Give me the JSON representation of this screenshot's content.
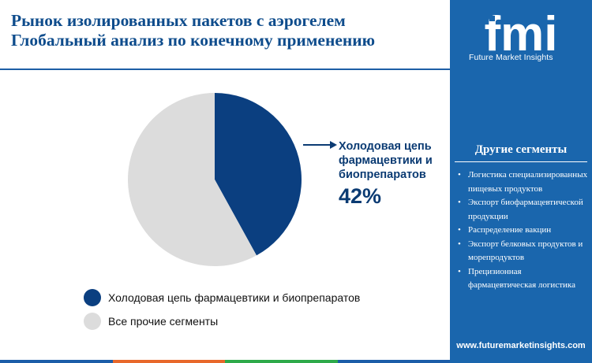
{
  "title": {
    "line1": "Рынок изолированных пакетов с аэрогелем",
    "line2": "Глобальный анализ по конечному применению"
  },
  "chart_data": {
    "type": "pie",
    "categories": [
      "Холодовая цепь фармацевтики и биопрепаратов",
      "Все прочие сегменты"
    ],
    "values": [
      42,
      58
    ],
    "colors": [
      "#0b3f80",
      "#dcdcdc"
    ],
    "callout_label": "Холодовая цепь фармацевтики и биопрепаратов",
    "callout_value": "42%"
  },
  "legend": [
    {
      "label": "Холодовая цепь фармацевтики и биопрепаратов",
      "color": "#0b3f80"
    },
    {
      "label": "Все прочие сегменты",
      "color": "#dcdcdc"
    }
  ],
  "sidebar": {
    "logo_text": "fmi",
    "logo_subtitle": "Future Market Insights",
    "heading": "Другие сегменты",
    "items": [
      "Логистика специализированных пищевых продуктов",
      "Экспорт биофармацевтической продукции",
      "Распределение вакцин",
      "Экспорт белковых продуктов и морепродуктов",
      "Прецизионная фармацевтическая логистика"
    ],
    "url": "www.futuremarketinsights.com"
  },
  "colors": {
    "title": "#0e4c8c",
    "sidebar_bg": "#1a66ad",
    "accent_dark": "#0b3b73",
    "bottom_bar": [
      "#1b5da8",
      "#e8682a",
      "#2eaa4a",
      "#1b5da8"
    ]
  }
}
